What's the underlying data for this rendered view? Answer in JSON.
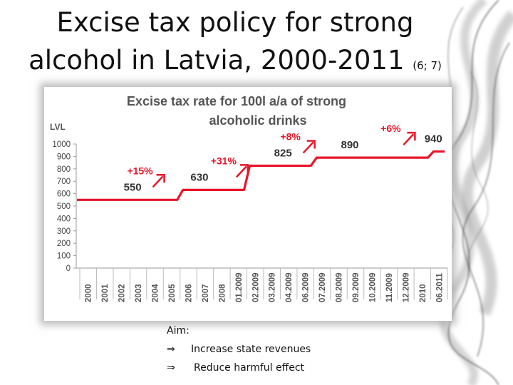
{
  "slide": {
    "title_line1": "Excise tax policy for strong",
    "title_line2": "alcohol in Latvia, 2000-2011",
    "title_ref": "(6; 7)"
  },
  "aim": {
    "label": "Aim:",
    "arrow_icon": "implies-arrow-icon",
    "items": [
      "Increase state revenues",
      "Reduce harmful effect"
    ]
  },
  "colors": {
    "series": "#e8152a",
    "arrow": "#e8152a",
    "title": "#555555"
  },
  "chart_data": {
    "type": "line",
    "title_line1": "Excise tax rate  for 100l a/a of strong",
    "title_line2": "alcoholic drinks",
    "ylabel": "LVL",
    "xlabel": "",
    "ylim": [
      0,
      1000
    ],
    "yticks": [
      0,
      100,
      200,
      300,
      400,
      500,
      600,
      700,
      800,
      900,
      1000
    ],
    "grid": false,
    "categories": [
      "2000",
      "2001",
      "2002",
      "2003",
      "2004",
      "2005",
      "2006",
      "2007",
      "2008",
      "01.2009",
      "02.2009",
      "03.2009",
      "04.2009",
      "06.2009",
      "07.2009",
      "08.2009",
      "09.2009",
      "10.2009",
      "11.2009",
      "12.2009",
      "2010",
      "06.2011"
    ],
    "series": [
      {
        "values": [
          550,
          550,
          550,
          550,
          550,
          550,
          630,
          630,
          630,
          630,
          825,
          825,
          825,
          825,
          890,
          890,
          890,
          890,
          890,
          890,
          890,
          940
        ]
      }
    ],
    "value_labels": [
      {
        "category": "2003",
        "text": "550"
      },
      {
        "category": "2007",
        "text": "630"
      },
      {
        "category": "04.2009",
        "text": "825"
      },
      {
        "category": "09.2009",
        "text": "890"
      },
      {
        "category": "06.2011",
        "text": "940"
      }
    ],
    "annotations": [
      {
        "category": "2004",
        "text": "+15%"
      },
      {
        "category": "01.2009",
        "text": "+31%"
      },
      {
        "category": "06.2009",
        "text": "+8%"
      },
      {
        "category": "12.2009",
        "text": "+6%"
      }
    ]
  }
}
